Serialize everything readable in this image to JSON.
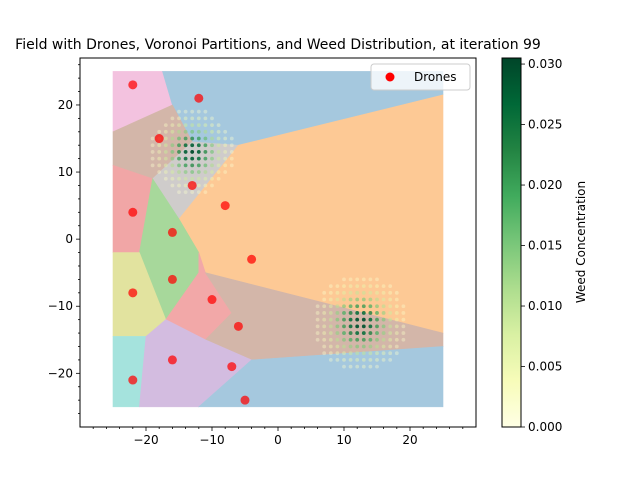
{
  "chart_data": {
    "type": "scatter",
    "title": "Field with Drones, Voronoi Partitions, and Weed Distribution, at iteration 99",
    "xlabel": "",
    "ylabel": "",
    "xlim": [
      -30,
      30
    ],
    "ylim": [
      -28,
      27
    ],
    "xticks": [
      -20,
      -10,
      0,
      10,
      20
    ],
    "yticks": [
      -20,
      -10,
      0,
      10,
      20
    ],
    "xtick_labels": [
      "−20",
      "−10",
      "0",
      "10",
      "20"
    ],
    "ytick_labels": [
      "−20",
      "−10",
      "0",
      "10",
      "20"
    ],
    "field_bounds": {
      "x": [
        -25,
        25
      ],
      "y": [
        -25,
        25
      ]
    },
    "legend": {
      "entries": [
        {
          "label": "Drones",
          "color": "#ff0000"
        }
      ],
      "placement": "top-right"
    },
    "series": [
      {
        "name": "Drones",
        "color": "#ff0000",
        "points": [
          [
            -22,
            23
          ],
          [
            -12,
            21
          ],
          [
            -18,
            15
          ],
          [
            -13,
            8
          ],
          [
            -22,
            4
          ],
          [
            -8,
            5
          ],
          [
            -16,
            1
          ],
          [
            -4,
            -3
          ],
          [
            -22,
            -8
          ],
          [
            -16,
            -6
          ],
          [
            -10,
            -9
          ],
          [
            -6,
            -13
          ],
          [
            -16,
            -18
          ],
          [
            -7,
            -19
          ],
          [
            -22,
            -21
          ],
          [
            -5,
            -24
          ]
        ]
      }
    ],
    "voronoi_cells": [
      {
        "color": "#f3c2df",
        "polygon": [
          [
            -25,
            25
          ],
          [
            -17.5,
            25
          ],
          [
            -16,
            20
          ],
          [
            -25,
            16
          ]
        ]
      },
      {
        "color": "#a5c8de",
        "polygon": [
          [
            -17.5,
            25
          ],
          [
            25,
            25
          ],
          [
            25,
            21.5
          ],
          [
            -6,
            14
          ],
          [
            -13,
            14.5
          ],
          [
            -16,
            20
          ]
        ]
      },
      {
        "color": "#d3b6a9",
        "polygon": [
          [
            -25,
            16
          ],
          [
            -16,
            20
          ],
          [
            -13,
            14.5
          ],
          [
            -19,
            9
          ],
          [
            -25,
            11
          ]
        ]
      },
      {
        "color": "#cfcccb",
        "polygon": [
          [
            -13,
            14.5
          ],
          [
            -6,
            14
          ],
          [
            -15,
            3
          ],
          [
            -19,
            9
          ]
        ]
      },
      {
        "color": "#f1a6a6",
        "polygon": [
          [
            -25,
            11
          ],
          [
            -19,
            9
          ],
          [
            -16,
            4
          ],
          [
            -21,
            -2
          ],
          [
            -25,
            -2
          ]
        ]
      },
      {
        "color": "#fdc995",
        "polygon": [
          [
            -6,
            14
          ],
          [
            25,
            21.5
          ],
          [
            25,
            -14
          ],
          [
            -11,
            -5
          ],
          [
            -12,
            -4
          ],
          [
            -15,
            3
          ]
        ]
      },
      {
        "color": "#a7d89b",
        "polygon": [
          [
            -19,
            9
          ],
          [
            -15,
            3
          ],
          [
            -12,
            -2
          ],
          [
            -12,
            -5
          ],
          [
            -17,
            -12
          ],
          [
            -21,
            -2
          ]
        ]
      },
      {
        "color": "#e2e39f",
        "polygon": [
          [
            -25,
            -2
          ],
          [
            -21,
            -2
          ],
          [
            -17,
            -12
          ],
          [
            -20,
            -14.5
          ],
          [
            -25,
            -14.5
          ]
        ]
      },
      {
        "color": "#f2a8a8",
        "polygon": [
          [
            -12,
            -2
          ],
          [
            -11,
            -5
          ],
          [
            -7,
            -11
          ],
          [
            -11,
            -15
          ],
          [
            -17,
            -12
          ],
          [
            -12,
            -5
          ]
        ]
      },
      {
        "color": "#d3b6a9",
        "polygon": [
          [
            -11,
            -5
          ],
          [
            25,
            -14
          ],
          [
            25,
            -16
          ],
          [
            -4,
            -18
          ],
          [
            -11,
            -15
          ],
          [
            -7,
            -11
          ]
        ]
      },
      {
        "color": "#a5e3dd",
        "polygon": [
          [
            -25,
            -14.5
          ],
          [
            -20,
            -14.5
          ],
          [
            -21,
            -25
          ],
          [
            -25,
            -25
          ]
        ]
      },
      {
        "color": "#d3bce0",
        "polygon": [
          [
            -20,
            -14.5
          ],
          [
            -17,
            -12
          ],
          [
            -11,
            -15
          ],
          [
            -4,
            -18
          ],
          [
            -12,
            -25
          ],
          [
            -21,
            -25
          ]
        ]
      },
      {
        "color": "#a5c8de",
        "polygon": [
          [
            -4,
            -18
          ],
          [
            25,
            -16
          ],
          [
            25,
            -25
          ],
          [
            -12,
            -25
          ]
        ]
      }
    ],
    "weed_clusters": [
      {
        "center": [
          -13,
          13
        ],
        "peak": 0.03,
        "sigma": 2.6
      },
      {
        "center": [
          12.5,
          -12.5
        ],
        "peak": 0.03,
        "sigma": 3.0
      }
    ],
    "colorbar": {
      "label": "Weed Concentration",
      "min": 0.0,
      "max": 0.0305,
      "ticks": [
        0.0,
        0.005,
        0.01,
        0.015,
        0.02,
        0.025,
        0.03
      ],
      "tick_labels": [
        "0.000",
        "0.005",
        "0.010",
        "0.015",
        "0.020",
        "0.025",
        "0.030"
      ],
      "colormap": "Greens",
      "colors": [
        "#ffffe5",
        "#f7fcb9",
        "#d9f0a3",
        "#addd8e",
        "#78c679",
        "#41ab5d",
        "#238443",
        "#006837",
        "#004529"
      ]
    }
  }
}
